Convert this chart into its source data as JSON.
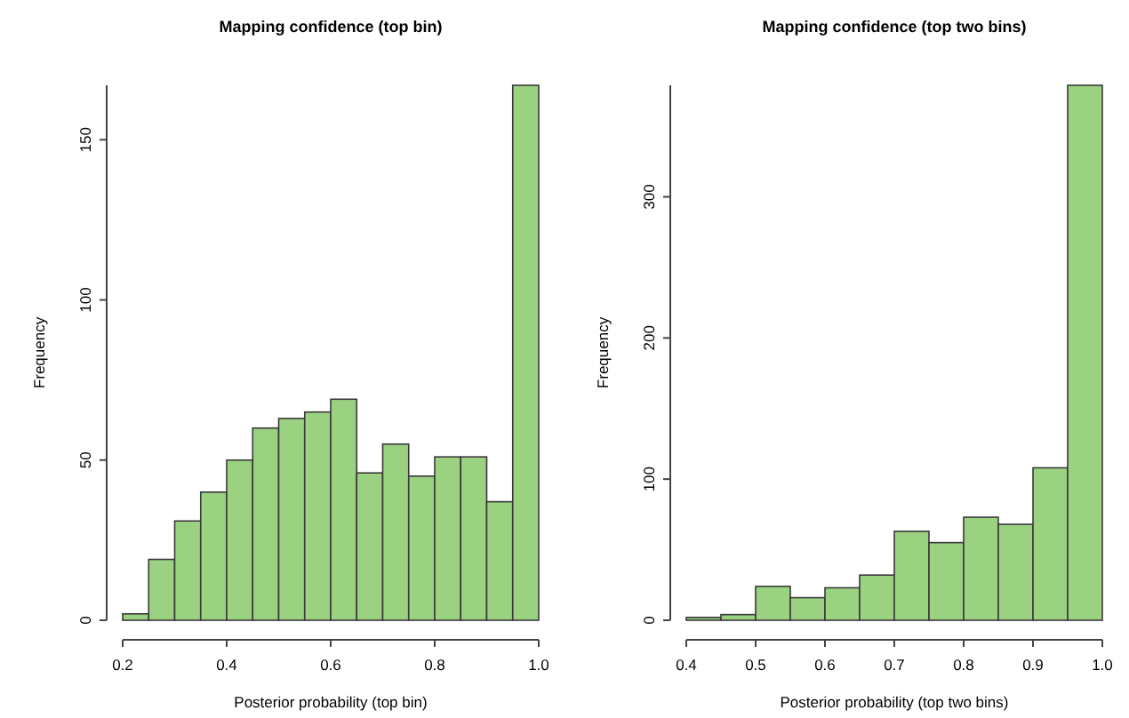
{
  "chart_data": [
    {
      "type": "histogram",
      "title": "Mapping confidence (top bin)",
      "xlabel": "Posterior probability (top bin)",
      "ylabel": "Frequency",
      "color": "#9bd282",
      "bins": [
        0.2,
        0.25,
        0.3,
        0.35,
        0.4,
        0.45,
        0.5,
        0.55,
        0.6,
        0.65,
        0.7,
        0.75,
        0.8,
        0.85,
        0.9,
        0.95,
        1.0
      ],
      "values": [
        2,
        19,
        31,
        40,
        50,
        60,
        63,
        65,
        69,
        46,
        55,
        45,
        51,
        51,
        37,
        167
      ],
      "xlim": [
        0.2,
        1.0
      ],
      "xticks": [
        {
          "value": 0.2,
          "label": "0.2"
        },
        {
          "value": 0.4,
          "label": "0.4"
        },
        {
          "value": 0.6,
          "label": "0.6"
        },
        {
          "value": 0.8,
          "label": "0.8"
        },
        {
          "value": 1.0,
          "label": "1.0"
        }
      ],
      "ylim": [
        0,
        167
      ],
      "yticks": [
        0,
        50,
        100,
        150
      ],
      "grid": false
    },
    {
      "type": "histogram",
      "title": "Mapping confidence (top two bins)",
      "xlabel": "Posterior probability (top two bins)",
      "ylabel": "Frequency",
      "color": "#9bd282",
      "bins": [
        0.4,
        0.45,
        0.5,
        0.55,
        0.6,
        0.65,
        0.7,
        0.75,
        0.8,
        0.85,
        0.9,
        0.95,
        1.0
      ],
      "values": [
        2,
        4,
        24,
        16,
        23,
        32,
        63,
        55,
        73,
        68,
        108,
        379
      ],
      "xlim": [
        0.4,
        1.0
      ],
      "xticks": [
        {
          "value": 0.4,
          "label": "0.4"
        },
        {
          "value": 0.5,
          "label": "0.5"
        },
        {
          "value": 0.6,
          "label": "0.6"
        },
        {
          "value": 0.7,
          "label": "0.7"
        },
        {
          "value": 0.8,
          "label": "0.8"
        },
        {
          "value": 0.9,
          "label": "0.9"
        },
        {
          "value": 1.0,
          "label": "1.0"
        }
      ],
      "ylim": [
        0,
        379
      ],
      "yticks": [
        0,
        100,
        200,
        300
      ],
      "grid": false
    }
  ]
}
